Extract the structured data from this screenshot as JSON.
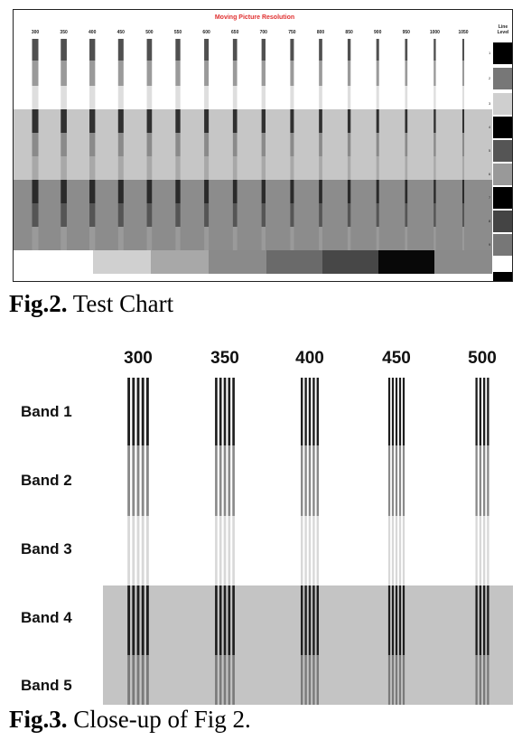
{
  "fig2": {
    "chart_title": "Moving Picture Resolution",
    "column_labels": [
      "300",
      "350",
      "400",
      "450",
      "500",
      "550",
      "600",
      "650",
      "700",
      "750",
      "800",
      "850",
      "900",
      "950",
      "1000",
      "1050"
    ],
    "level_header": "Line Level",
    "level_numbers": [
      "1",
      "2",
      "3",
      "4",
      "5",
      "6",
      "7",
      "8",
      "9"
    ],
    "caption_bold": "Fig.2.",
    "caption_text": " Test Chart"
  },
  "fig3": {
    "column_labels": [
      "300",
      "350",
      "400",
      "450",
      "500"
    ],
    "band_labels": [
      "Band 1",
      "Band 2",
      "Band 3",
      "Band 4",
      "Band 5"
    ],
    "caption_bold": "Fig.3.",
    "caption_text": " Close-up of Fig 2."
  },
  "colors": {
    "title_red": "#e03030",
    "background_white": "#ffffff",
    "background_light_gray": "#c4c4c4",
    "background_mid_gray": "#8a8a8a",
    "line_dark": "#222222",
    "line_mid": "#888888",
    "line_light": "#d8d8d8"
  }
}
